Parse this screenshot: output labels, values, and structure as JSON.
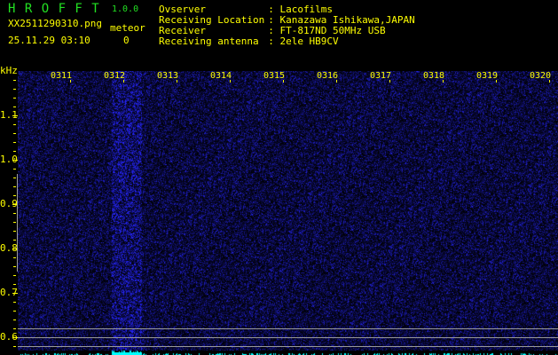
{
  "app": {
    "logo": "H R O F F T",
    "version": "1.0.0"
  },
  "file": {
    "name": "XX2511290310.png",
    "datetime": "25.11.29 03:10"
  },
  "meteor": {
    "label": "meteor",
    "count": "0"
  },
  "info": [
    {
      "label": "Ovserver",
      "value": ": Lacofilms"
    },
    {
      "label": "Receiving Location",
      "value": ": Kanazawa Ishikawa,JAPAN"
    },
    {
      "label": "Receiver",
      "value": ": FT-817ND 50MHz USB"
    },
    {
      "label": "Receiving antenna",
      "value": ": 2ele HB9CV"
    }
  ],
  "axis": {
    "unit": "kHz",
    "y_ticks": [
      "1.1",
      "1.0",
      "0.9",
      "0.8",
      "0.7",
      "0.6"
    ],
    "x_ticks": [
      "0311",
      "0312",
      "0313",
      "0314",
      "0315",
      "0316",
      "0317",
      "0318",
      "0319",
      "0320"
    ]
  },
  "colors": {
    "text": "#ffff00",
    "logo": "#22e022",
    "signal": "#1a1aff",
    "spectrum": "#00ffff"
  }
}
